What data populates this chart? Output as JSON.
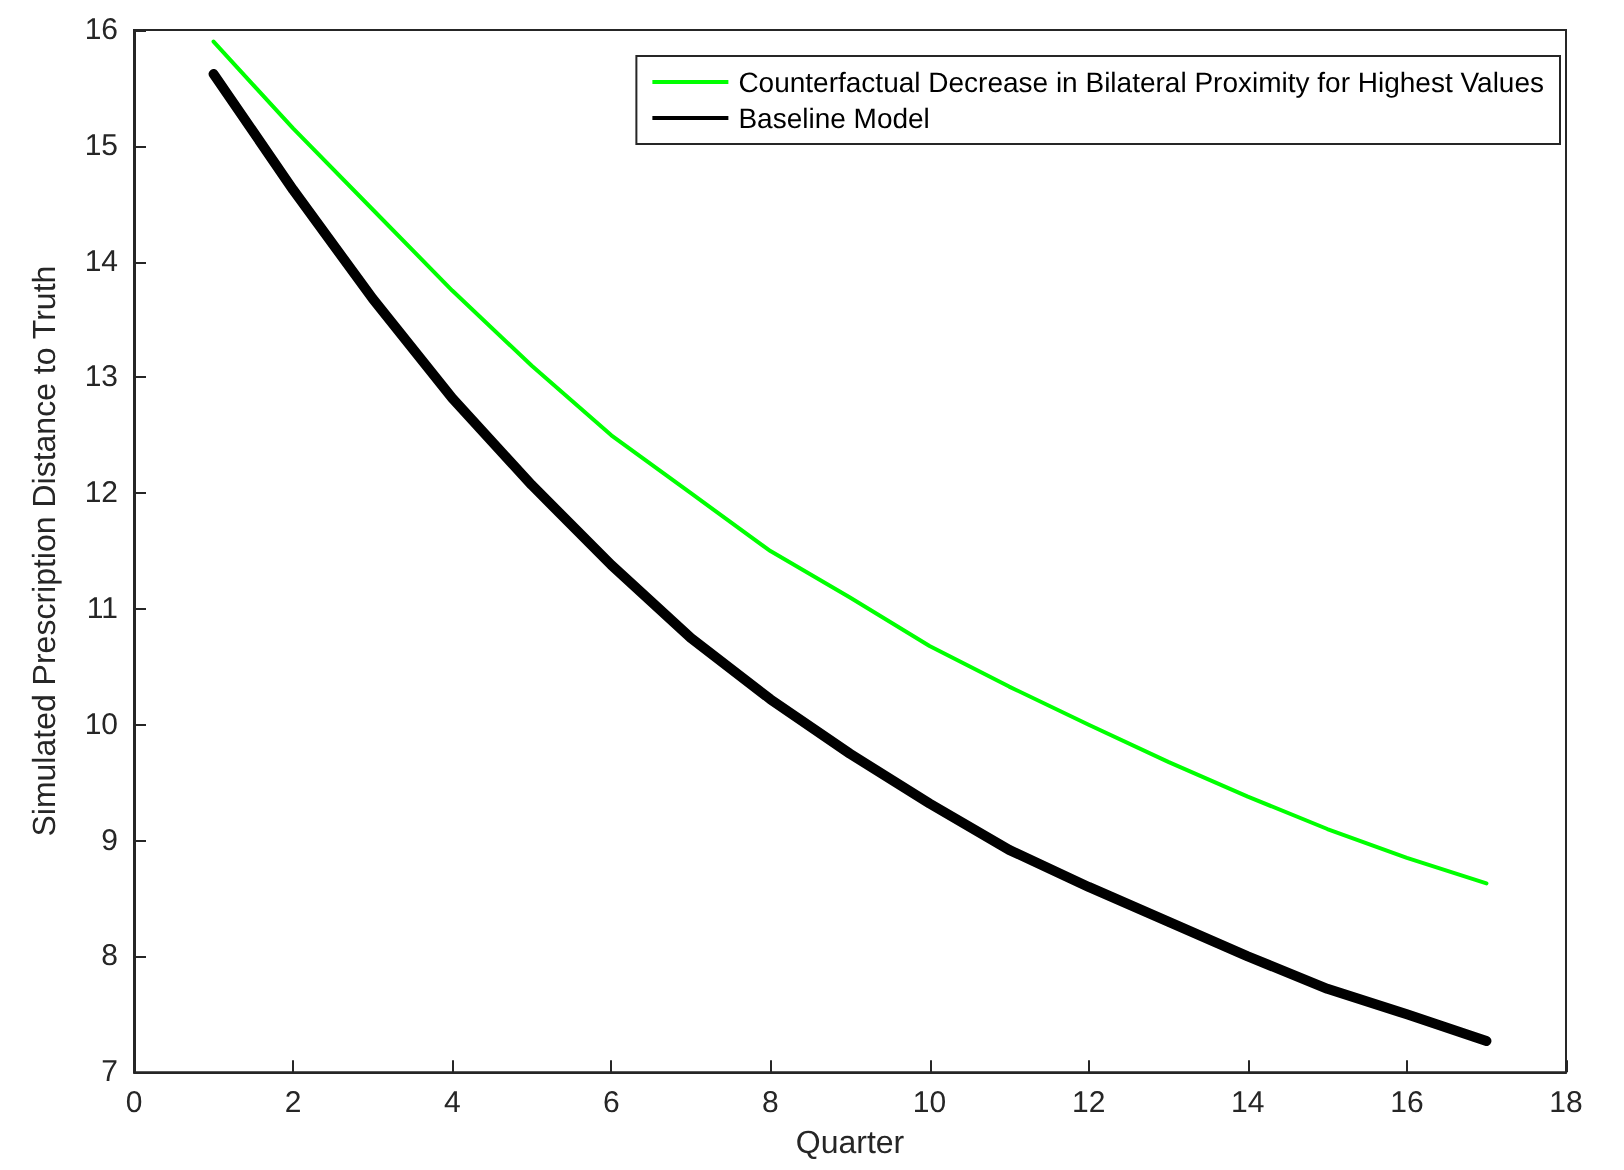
{
  "chart_data": {
    "type": "line",
    "xlabel": "Quarter",
    "ylabel": "Simulated Prescription Distance to Truth",
    "x": [
      1,
      2,
      3,
      4,
      5,
      6,
      7,
      8,
      9,
      10,
      11,
      12,
      13,
      14,
      15,
      16,
      17
    ],
    "series": [
      {
        "name": "Counterfactual Decrease in Bilateral Proximity for Highest Values",
        "color": "#00ff00",
        "values": [
          15.9,
          15.15,
          14.45,
          13.75,
          13.1,
          12.5,
          12.0,
          11.5,
          11.1,
          10.68,
          10.33,
          10.0,
          9.68,
          9.38,
          9.1,
          8.85,
          8.63
        ]
      },
      {
        "name": "Baseline Model",
        "color": "#000000",
        "values": [
          15.62,
          14.62,
          13.68,
          12.82,
          12.07,
          11.38,
          10.75,
          10.22,
          9.75,
          9.32,
          8.92,
          8.6,
          8.3,
          8.0,
          7.72,
          7.5,
          7.27
        ]
      }
    ],
    "xlim": [
      0,
      18
    ],
    "xticks": [
      0,
      2,
      4,
      6,
      8,
      10,
      12,
      14,
      16,
      18
    ],
    "ylim": [
      7,
      16
    ],
    "yticks": [
      7,
      8,
      9,
      10,
      11,
      12,
      13,
      14,
      15,
      16
    ],
    "grid": false,
    "legend": "top right",
    "marker": "none",
    "line_style": "solid"
  }
}
